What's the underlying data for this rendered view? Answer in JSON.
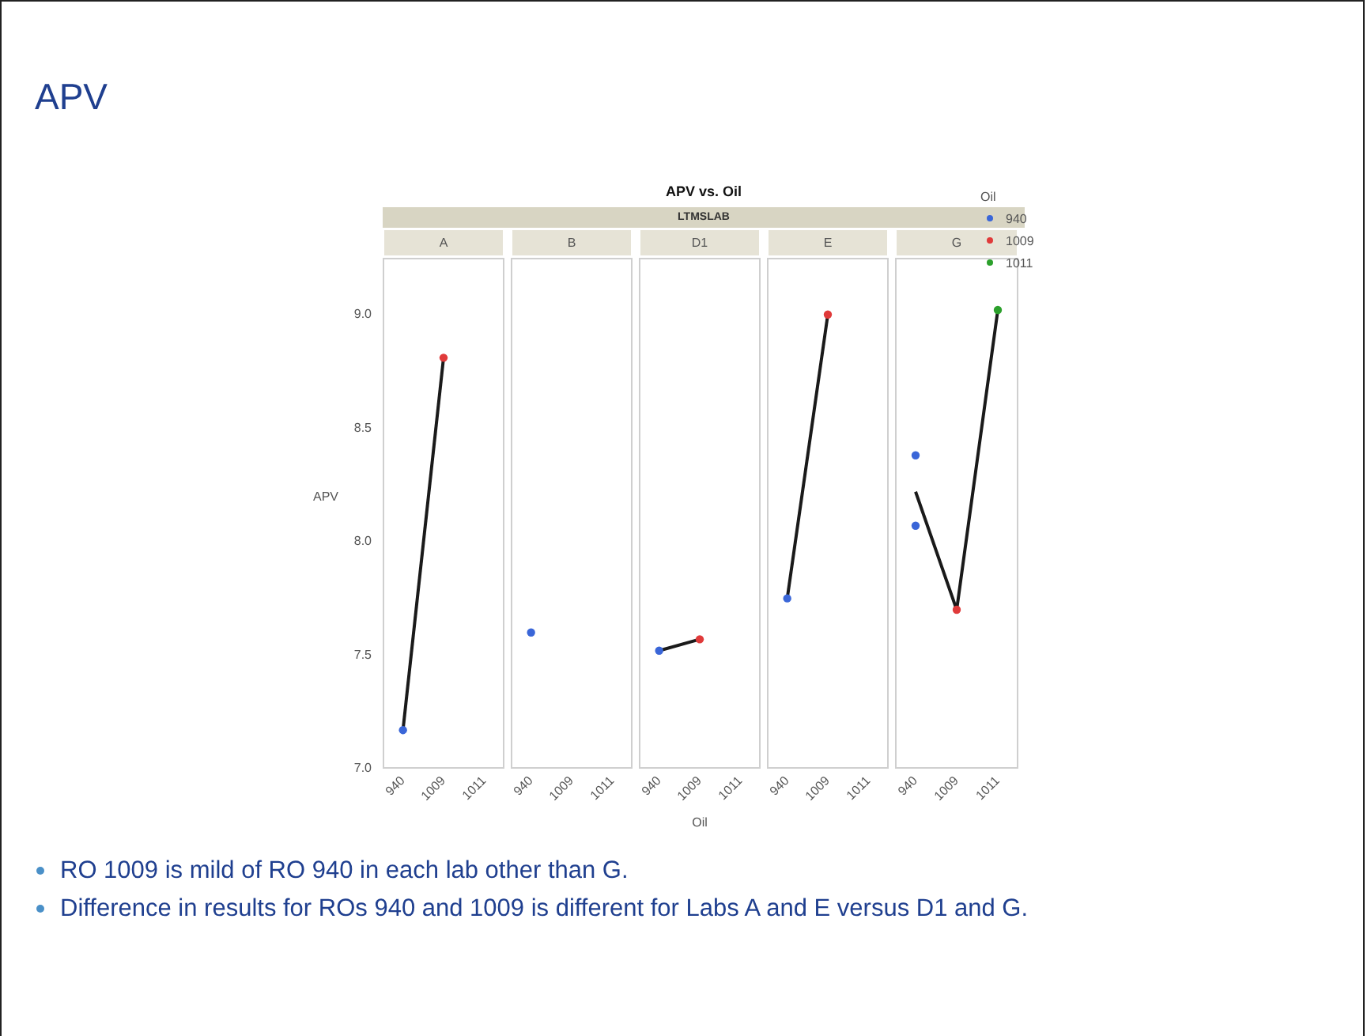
{
  "chart_data": [
    {
      "type": "line",
      "title": "A",
      "ylabel": "APV",
      "categories": [
        "940",
        "1009",
        "1011"
      ],
      "ylim": [
        7,
        9.25
      ],
      "yticks": [
        {
          "value": 7,
          "label": "7.0"
        },
        {
          "value": 7.5,
          "label": "7.5"
        },
        {
          "value": 8,
          "label": "8.0"
        },
        {
          "value": 8.5,
          "label": "8.5"
        },
        {
          "value": 9,
          "label": "9.0"
        }
      ],
      "grid": false,
      "line_style": "solid",
      "annotations": [
        "APV",
        "APV  vs. Oil",
        "LTMSLAB",
        "RO 1009 is mild of RO 940 in each lab other than G.",
        "Difference in results for ROs 940 and 1009 is different for Labs A and E versus D1 and G."
      ],
      "series": [
        {
          "type": "line",
          "marker": "none",
          "color": "#1a1a1a",
          "values": [
            7.17,
            8.81,
            null
          ]
        },
        {
          "type": "scatter",
          "marker": "circle",
          "color": "#3a66d8",
          "values": [
            7.17,
            null,
            null
          ]
        },
        {
          "type": "scatter",
          "marker": "circle",
          "color": "#e03a3a",
          "values": [
            null,
            8.81,
            null
          ]
        }
      ]
    },
    {
      "type": "line",
      "title": "B",
      "categories": [
        "940",
        "1009",
        "1011"
      ],
      "ylim": [
        7,
        9.25
      ],
      "grid": false,
      "tick_labels": "x",
      "series": [
        {
          "type": "scatter",
          "marker": "circle",
          "color": "#3a66d8",
          "values": [
            7.6,
            null,
            null
          ]
        }
      ]
    },
    {
      "type": "line",
      "title": "D1",
      "xlabel": "Oil",
      "categories": [
        "940",
        "1009",
        "1011"
      ],
      "ylim": [
        7,
        9.25
      ],
      "grid": false,
      "tick_labels": "x",
      "line_style": "solid",
      "series": [
        {
          "type": "line",
          "marker": "none",
          "color": "#1a1a1a",
          "values": [
            7.52,
            7.57,
            null
          ]
        },
        {
          "type": "scatter",
          "marker": "circle",
          "color": "#3a66d8",
          "values": [
            7.52,
            null,
            null
          ]
        },
        {
          "type": "scatter",
          "marker": "circle",
          "color": "#e03a3a",
          "values": [
            null,
            7.57,
            null
          ]
        }
      ]
    },
    {
      "type": "line",
      "title": "E",
      "categories": [
        "940",
        "1009",
        "1011"
      ],
      "ylim": [
        7,
        9.25
      ],
      "grid": false,
      "tick_labels": "x",
      "line_style": "solid",
      "series": [
        {
          "type": "line",
          "marker": "none",
          "color": "#1a1a1a",
          "values": [
            7.75,
            9.0,
            null
          ]
        },
        {
          "type": "scatter",
          "marker": "circle",
          "color": "#3a66d8",
          "values": [
            7.75,
            null,
            null
          ]
        },
        {
          "type": "scatter",
          "marker": "circle",
          "color": "#e03a3a",
          "values": [
            null,
            9.0,
            null
          ]
        }
      ]
    },
    {
      "type": "line",
      "title": "G",
      "legend_title": "Oil",
      "legend": "top right",
      "categories": [
        "940",
        "1009",
        "1011"
      ],
      "ylim": [
        7,
        9.25
      ],
      "grid": false,
      "tick_labels": "x",
      "line_style": "solid",
      "series": [
        {
          "type": "line",
          "marker": "none",
          "color": "#1a1a1a",
          "values": [
            8.22,
            7.7,
            9.02
          ]
        },
        {
          "type": "scatter",
          "marker": "circle",
          "name": "940",
          "color": "#3a66d8",
          "x": [
            "940",
            "940"
          ],
          "values": [
            8.38,
            8.07
          ]
        },
        {
          "type": "scatter",
          "marker": "circle",
          "name": "1009",
          "color": "#e03a3a",
          "values": [
            null,
            7.7,
            null
          ]
        },
        {
          "type": "scatter",
          "marker": "circle",
          "name": "1011",
          "color": "#2ca02c",
          "values": [
            null,
            null,
            9.02
          ]
        }
      ]
    }
  ]
}
